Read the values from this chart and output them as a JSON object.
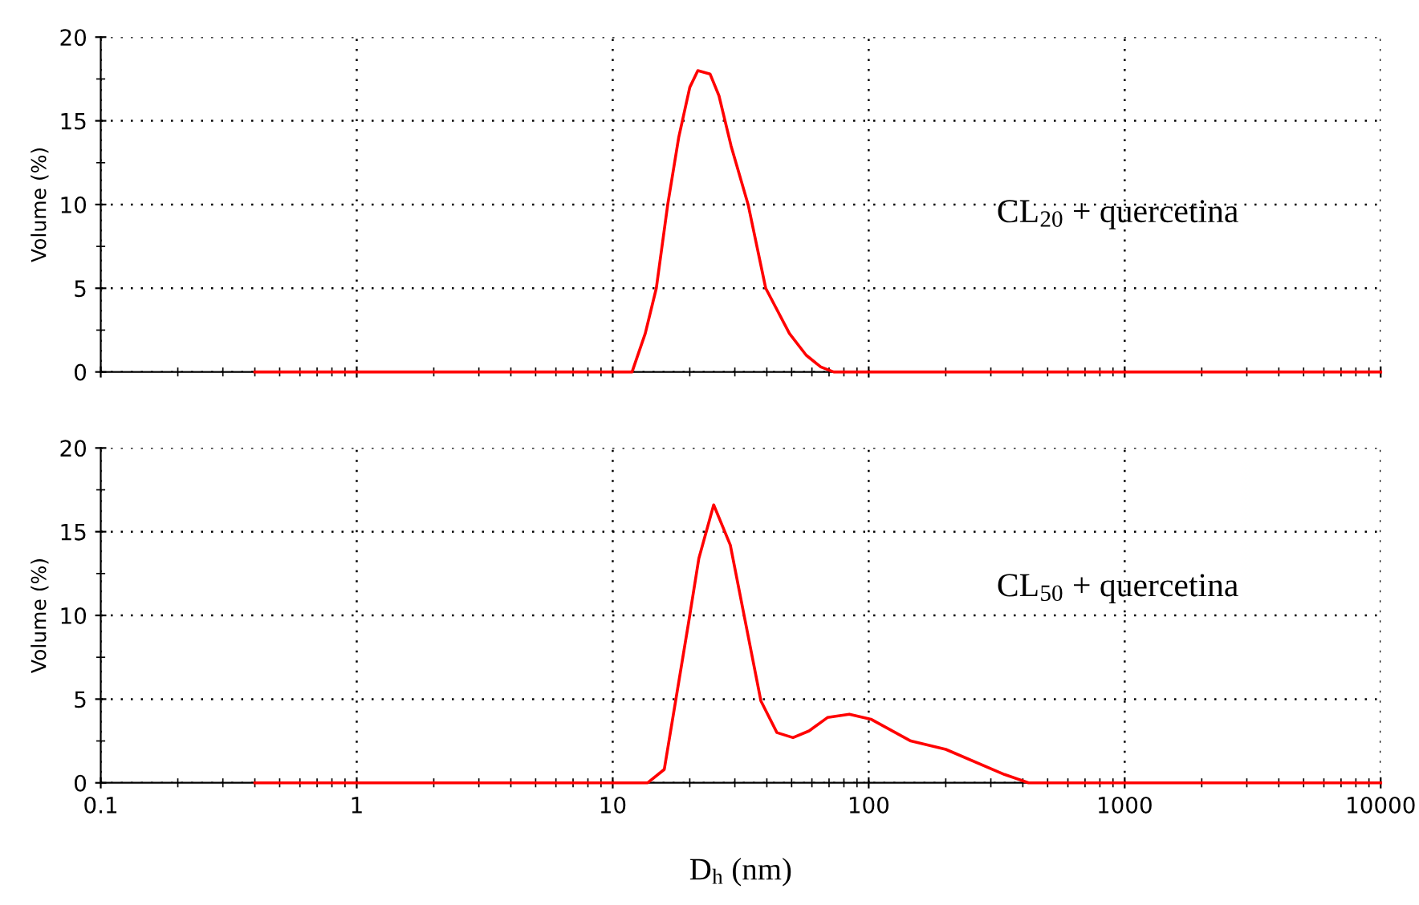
{
  "chart_data": [
    {
      "type": "line",
      "ylabel": "Volume (%)",
      "log": "x",
      "xlim": [
        0.1,
        10000
      ],
      "xticks": [
        0.1,
        1,
        10,
        100,
        1000,
        10000
      ],
      "ylim": [
        0,
        20
      ],
      "yticks": [
        0,
        5,
        10,
        15,
        20
      ],
      "grid": true,
      "tick_labels": "y",
      "line_style": "solid",
      "annotations": [
        "CL$_{20}$ + quercetina"
      ],
      "series": [
        {
          "color": "#ff0000",
          "x": [
            0.4,
            1,
            3,
            10,
            11.9,
            13.4,
            14.8,
            16.4,
            18.1,
            20,
            21.5,
            24,
            26,
            29,
            33.8,
            39.6,
            49,
            57,
            65,
            73,
            100,
            300,
            1000,
            3000,
            10000
          ],
          "values": [
            0,
            0,
            0,
            0,
            0,
            2.3,
            5,
            10,
            14,
            17,
            18,
            17.8,
            16.5,
            13.5,
            10,
            5,
            2.3,
            1,
            0.3,
            0,
            0,
            0,
            0,
            0,
            0
          ]
        }
      ]
    },
    {
      "type": "line",
      "ylabel": "Volume (%)",
      "xlabel": "D$_{h}$ (nm)",
      "log": "x",
      "xlim": [
        0.1,
        10000
      ],
      "xticks": [
        0.1,
        1,
        10,
        100,
        1000,
        10000
      ],
      "ylim": [
        0,
        20
      ],
      "yticks": [
        0,
        5,
        10,
        15,
        20
      ],
      "grid": true,
      "line_style": "solid",
      "annotations": [
        "CL$_{50}$ + quercetina"
      ],
      "series": [
        {
          "color": "#ff0000",
          "x": [
            0.4,
            1,
            3,
            10,
            13.7,
            15.9,
            19.8,
            21.7,
            24.8,
            28.8,
            37.9,
            43.8,
            50.6,
            58.5,
            69,
            84,
            102,
            146,
            200,
            339,
            421,
            1000,
            3000,
            10000
          ],
          "values": [
            0,
            0,
            0,
            0,
            0,
            0.8,
            9.6,
            13.4,
            16.6,
            14.2,
            4.9,
            3,
            2.7,
            3.1,
            3.9,
            4.1,
            3.8,
            2.5,
            2,
            0.5,
            0,
            0,
            0,
            0
          ]
        }
      ]
    }
  ]
}
